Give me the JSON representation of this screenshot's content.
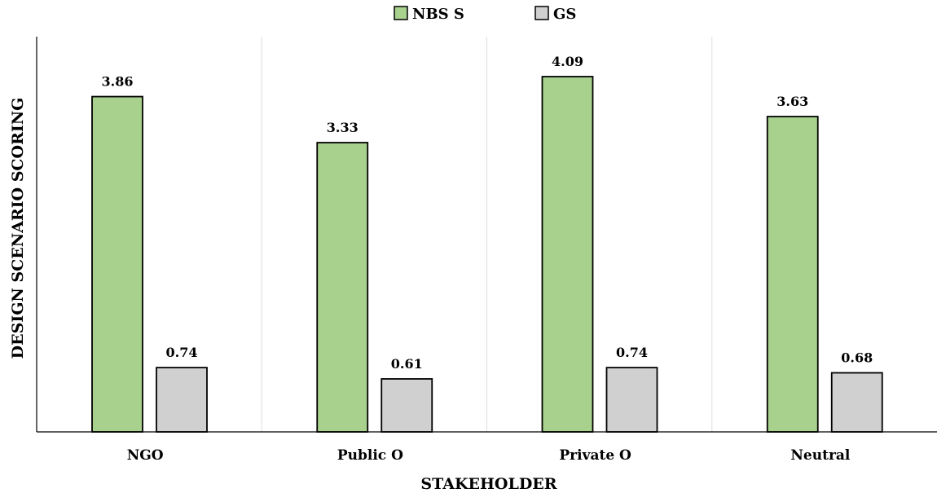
{
  "chart_data": {
    "type": "bar",
    "categories": [
      "NGO",
      "Public O",
      "Private O",
      "Neutral"
    ],
    "series": [
      {
        "name": "NBS S",
        "values": [
          3.86,
          3.33,
          4.09,
          3.63
        ],
        "color": "#a9d18e"
      },
      {
        "name": "GS",
        "values": [
          0.74,
          0.61,
          0.74,
          0.68
        ],
        "color": "#d0d0d0"
      }
    ],
    "data_labels": [
      [
        "3.86",
        "3.33",
        "4.09",
        "3.63"
      ],
      [
        "0.74",
        "0.61",
        "0.74",
        "0.68"
      ]
    ],
    "xlabel": "STAKEHOLDER",
    "ylabel": "DESIGN SCENARIO SCORING",
    "ylim": [
      0,
      4.55
    ],
    "grid": "vertical separators between categories",
    "legend_position": "top-center"
  }
}
